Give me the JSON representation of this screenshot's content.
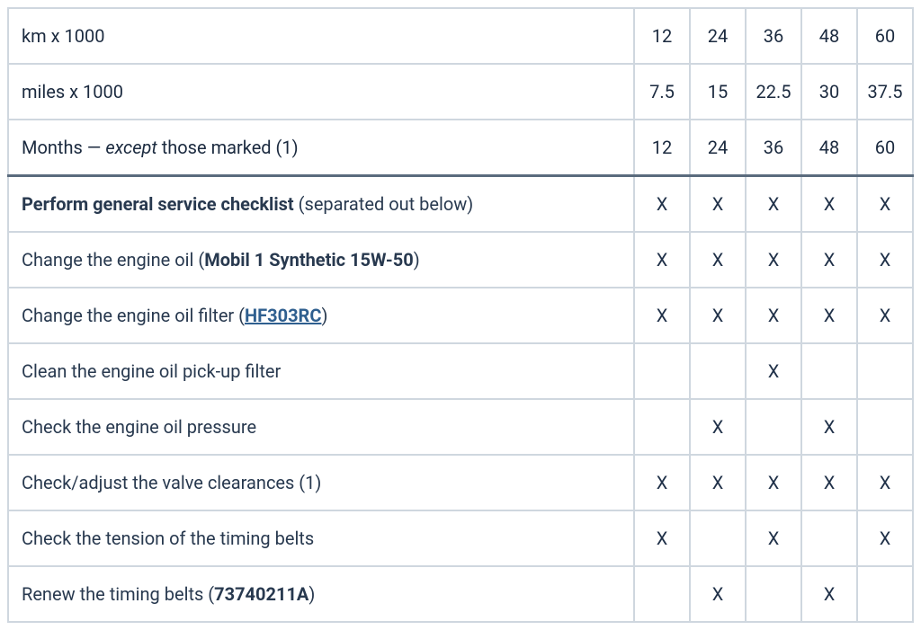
{
  "table": {
    "col_widths": {
      "label": "auto",
      "num": 62
    },
    "border_color": "#cfd7df",
    "header_bottom_border_color": "#5a6b7d",
    "text_color": "#1f3048",
    "link_color": "#2f5f8f",
    "background_color": "#ffffff",
    "font_family": "system-ui",
    "header_font_size": 22,
    "body_font_size": 20,
    "mark": "X",
    "header_rows": [
      {
        "label_html": "<span class='bold'>km x 1000</span>",
        "cells": [
          "12",
          "24",
          "36",
          "48",
          "60"
        ]
      },
      {
        "label_html": "<span class='bold'>miles x 1000</span>",
        "cells": [
          "7.5",
          "15",
          "22.5",
          "30",
          "37.5"
        ]
      },
      {
        "label_html": "<span class='bold'>Months — <span class='italic'>except</span> those marked (1)</span>",
        "cells": [
          "12",
          "24",
          "36",
          "48",
          "60"
        ]
      }
    ],
    "body_rows": [
      {
        "label_html": "<span class='bold'>Perform general service checklist</span> <span class='light'>(separated out below)</span>",
        "marks": [
          true,
          true,
          true,
          true,
          true
        ]
      },
      {
        "label_html": "Change the engine oil (<span class='bold'>Mobil 1 Synthetic 15W-50</span>)",
        "marks": [
          true,
          true,
          true,
          true,
          true
        ]
      },
      {
        "label_html": "Change the engine oil filter (<a href='#' class='link' data-name='oil-filter-link' data-interactable='true'>HF303RC</a>)",
        "marks": [
          true,
          true,
          true,
          true,
          true
        ]
      },
      {
        "label_html": "Clean the engine oil pick-up filter",
        "marks": [
          false,
          false,
          true,
          false,
          false
        ]
      },
      {
        "label_html": "Check the engine oil pressure",
        "marks": [
          false,
          true,
          false,
          true,
          false
        ]
      },
      {
        "label_html": "Check/adjust the valve clearances (1)",
        "marks": [
          true,
          true,
          true,
          true,
          true
        ]
      },
      {
        "label_html": "Check the tension of the timing belts",
        "marks": [
          true,
          false,
          true,
          false,
          true
        ]
      },
      {
        "label_html": "Renew the timing belts (<span class='bold'>73740211A</span>)",
        "marks": [
          false,
          true,
          false,
          true,
          false
        ]
      }
    ]
  }
}
